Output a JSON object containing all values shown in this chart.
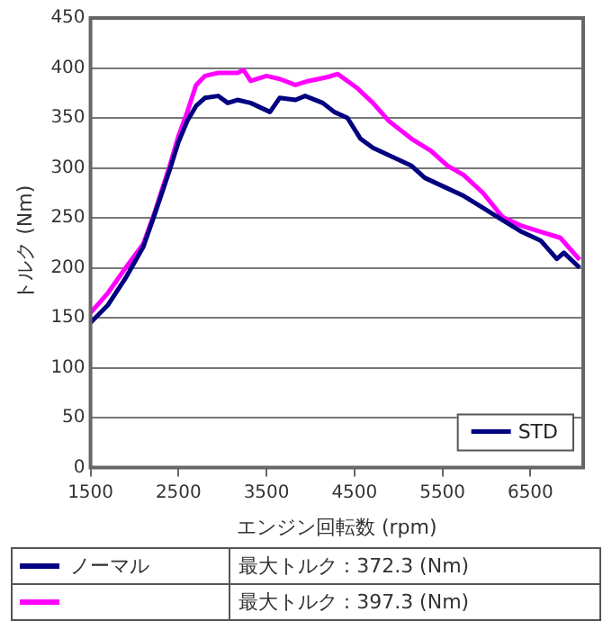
{
  "chart_data": {
    "type": "line",
    "xlabel": "エンジン回転数 (rpm)",
    "ylabel": "トルク (Nm)",
    "xlim": [
      1500,
      7100
    ],
    "xticks": [
      1500,
      2500,
      3500,
      4500,
      5500,
      6500
    ],
    "ylim": [
      0,
      450
    ],
    "yticks": [
      0,
      50,
      100,
      150,
      200,
      250,
      300,
      350,
      400,
      450
    ],
    "grid": "y",
    "legend": "bottom right",
    "marker": "none",
    "line_style": "solid",
    "series": [
      {
        "name": "STD",
        "color": "#000080",
        "x": [
          1500,
          1700,
          1900,
          2100,
          2220,
          2400,
          2500,
          2600,
          2700,
          2800,
          2950,
          3060,
          3170,
          3320,
          3540,
          3650,
          3830,
          3940,
          4140,
          4270,
          4420,
          4570,
          4710,
          4930,
          5150,
          5300,
          5520,
          5740,
          5960,
          6180,
          6400,
          6620,
          6800,
          6880,
          7060
        ],
        "values": [
          145,
          163,
          190,
          221,
          251,
          298,
          326,
          347,
          362,
          370,
          372,
          365,
          368,
          365,
          356,
          370,
          368,
          372,
          365,
          356,
          350,
          329,
          320,
          311,
          302,
          290,
          281,
          272,
          260,
          248,
          236,
          227,
          209,
          215,
          200
        ]
      },
      {
        "color": "#ff00ff",
        "x": [
          1500,
          1700,
          1900,
          2100,
          2220,
          2400,
          2500,
          2600,
          2700,
          2800,
          2950,
          3170,
          3240,
          3320,
          3500,
          3650,
          3830,
          3980,
          4200,
          4310,
          4530,
          4710,
          4890,
          5150,
          5370,
          5560,
          5740,
          5960,
          6180,
          6400,
          6620,
          6840,
          7060
        ],
        "values": [
          155,
          175,
          200,
          224,
          253,
          302,
          332,
          356,
          383,
          392,
          395,
          395,
          398,
          387,
          392,
          389,
          383,
          387,
          391,
          394,
          380,
          365,
          347,
          329,
          317,
          302,
          293,
          275,
          251,
          242,
          236,
          230,
          208
        ]
      }
    ],
    "annotations": [
      "ノーマル",
      "最大トルク : 372.3 (Nm)",
      "最大トルク : 397.3 (Nm)"
    ]
  }
}
